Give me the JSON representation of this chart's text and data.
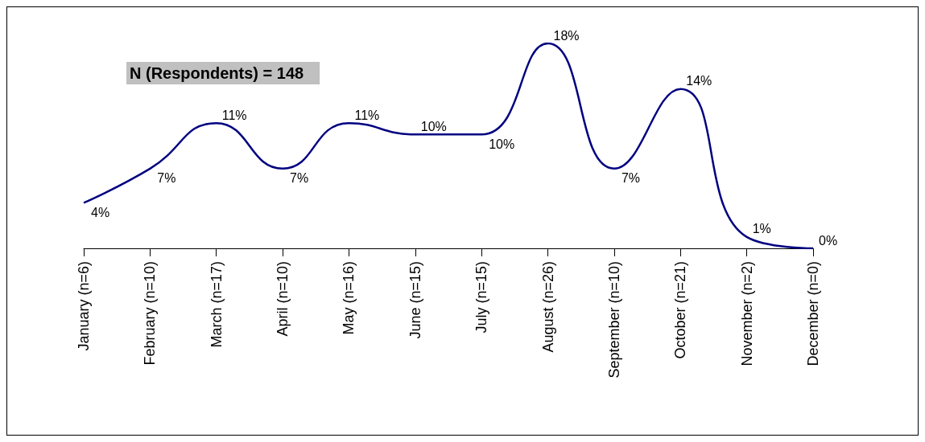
{
  "chart_data": {
    "type": "line",
    "categories": [
      "January (n=6)",
      "February (n=10)",
      "March (n=17)",
      "April (n=10)",
      "May (n=16)",
      "June (n=15)",
      "July (n=15)",
      "August (n=26)",
      "September (n=10)",
      "October (n=21)",
      "November (n=2)",
      "December (n=0)"
    ],
    "series": [
      {
        "color": "#000080",
        "values": [
          4,
          7,
          11,
          7,
          11,
          10,
          10,
          18,
          7,
          14,
          1,
          0
        ],
        "value_labels": [
          "4%",
          "7%",
          "11%",
          "7%",
          "11%",
          "10%",
          "10%",
          "18%",
          "7%",
          "14%",
          "1%",
          "0%"
        ]
      }
    ],
    "annotations": [
      "N (Respondents) = 148"
    ],
    "marker": "none"
  }
}
